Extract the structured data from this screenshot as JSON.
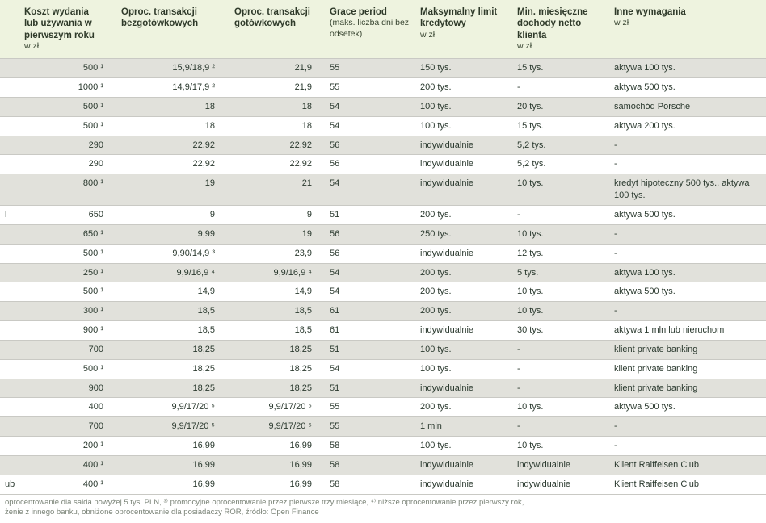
{
  "colors": {
    "header_bg": "#eef3df",
    "stripe_bg": "#e1e1db",
    "plain_bg": "#ffffff",
    "border": "#c9c9c4",
    "text": "#2b3a2f",
    "footnote_text": "#7a8377"
  },
  "columns": [
    {
      "title": "Koszt wydania lub używania w pierwszym roku",
      "sub": "w zł"
    },
    {
      "title": "Oproc. transakcji bezgotówkowych",
      "sub": ""
    },
    {
      "title": "Oproc. transakcji gotówkowych",
      "sub": ""
    },
    {
      "title": "Grace period",
      "sub": "(maks. liczba dni bez odsetek)"
    },
    {
      "title": "Maksymalny limit kredytowy",
      "sub": "w zł"
    },
    {
      "title": "Min. miesięczne dochody netto klienta",
      "sub": "w zł"
    },
    {
      "title": "Inne wymagania",
      "sub": "w zł"
    }
  ],
  "rows": [
    {
      "lead": "",
      "c1": "500 ¹",
      "c2": "15,9/18,9 ²",
      "c3": "21,9",
      "c4": "55",
      "c5": "150 tys.",
      "c6": "15 tys.",
      "c7": "aktywa 100 tys."
    },
    {
      "lead": "",
      "c1": "1000 ¹",
      "c2": "14,9/17,9 ²",
      "c3": "21,9",
      "c4": "55",
      "c5": "200 tys.",
      "c6": "-",
      "c7": "aktywa 500 tys."
    },
    {
      "lead": "",
      "c1": "500 ¹",
      "c2": "18",
      "c3": "18",
      "c4": "54",
      "c5": "100 tys.",
      "c6": "20 tys.",
      "c7": "samochód Porsche"
    },
    {
      "lead": "",
      "c1": "500 ¹",
      "c2": "18",
      "c3": "18",
      "c4": "54",
      "c5": "100 tys.",
      "c6": "15 tys.",
      "c7": "aktywa 200 tys."
    },
    {
      "lead": "",
      "c1": "290",
      "c2": "22,92",
      "c3": "22,92",
      "c4": "56",
      "c5": "indywidualnie",
      "c6": "5,2 tys.",
      "c7": "-"
    },
    {
      "lead": "",
      "c1": "290",
      "c2": "22,92",
      "c3": "22,92",
      "c4": "56",
      "c5": "indywidualnie",
      "c6": "5,2 tys.",
      "c7": "-"
    },
    {
      "lead": "",
      "c1": "800 ¹",
      "c2": "19",
      "c3": "21",
      "c4": "54",
      "c5": "indywidualnie",
      "c6": "10 tys.",
      "c7": "kredyt hipoteczny 500 tys., aktywa 100 tys.",
      "tall": true
    },
    {
      "lead": "l",
      "c1": "650",
      "c2": "9",
      "c3": "9",
      "c4": "51",
      "c5": "200 tys.",
      "c6": "-",
      "c7": "aktywa 500 tys."
    },
    {
      "lead": "",
      "c1": "650 ¹",
      "c2": "9,99",
      "c3": "19",
      "c4": "56",
      "c5": "250 tys.",
      "c6": "10 tys.",
      "c7": "-"
    },
    {
      "lead": "",
      "c1": "500 ¹",
      "c2": "9,90/14,9 ³",
      "c3": "23,9",
      "c4": "56",
      "c5": "indywidualnie",
      "c6": "12 tys.",
      "c7": "-"
    },
    {
      "lead": "",
      "c1": "250 ¹",
      "c2": "9,9/16,9 ⁴",
      "c3": "9,9/16,9 ⁴",
      "c4": "54",
      "c5": "200 tys.",
      "c6": "5 tys.",
      "c7": "aktywa 100 tys."
    },
    {
      "lead": "",
      "c1": "500 ¹",
      "c2": "14,9",
      "c3": "14,9",
      "c4": "54",
      "c5": "200 tys.",
      "c6": "10 tys.",
      "c7": "aktywa 500 tys."
    },
    {
      "lead": "",
      "c1": "300 ¹",
      "c2": "18,5",
      "c3": "18,5",
      "c4": "61",
      "c5": "200 tys.",
      "c6": "10 tys.",
      "c7": "-"
    },
    {
      "lead": "",
      "c1": "900 ¹",
      "c2": "18,5",
      "c3": "18,5",
      "c4": "61",
      "c5": "indywidualnie",
      "c6": "30 tys.",
      "c7": "aktywa 1 mln lub nieruchom"
    },
    {
      "lead": "",
      "c1": "700",
      "c2": "18,25",
      "c3": "18,25",
      "c4": "51",
      "c5": "100 tys.",
      "c6": "-",
      "c7": "klient private banking"
    },
    {
      "lead": "",
      "c1": "500 ¹",
      "c2": "18,25",
      "c3": "18,25",
      "c4": "54",
      "c5": "100 tys.",
      "c6": "-",
      "c7": "klient private banking"
    },
    {
      "lead": "",
      "c1": "900",
      "c2": "18,25",
      "c3": "18,25",
      "c4": "51",
      "c5": "indywidualnie",
      "c6": "-",
      "c7": "klient private banking"
    },
    {
      "lead": "",
      "c1": "400",
      "c2": "9,9/17/20 ⁵",
      "c3": "9,9/17/20 ⁵",
      "c4": "55",
      "c5": "200 tys.",
      "c6": "10 tys.",
      "c7": "aktywa 500 tys."
    },
    {
      "lead": "",
      "c1": "700",
      "c2": "9,9/17/20 ⁵",
      "c3": "9,9/17/20 ⁵",
      "c4": "55",
      "c5": "1 mln",
      "c6": "-",
      "c7": "-"
    },
    {
      "lead": "",
      "c1": "200 ¹",
      "c2": "16,99",
      "c3": "16,99",
      "c4": "58",
      "c5": "100 tys.",
      "c6": "10 tys.",
      "c7": "-"
    },
    {
      "lead": "",
      "c1": "400 ¹",
      "c2": "16,99",
      "c3": "16,99",
      "c4": "58",
      "c5": "indywidualnie",
      "c6": "indywidualnie",
      "c7": "Klient Raiffeisen Club"
    },
    {
      "lead": "ub",
      "c1": "400 ¹",
      "c2": "16,99",
      "c3": "16,99",
      "c4": "58",
      "c5": "indywidualnie",
      "c6": "indywidualnie",
      "c7": "Klient Raiffeisen Club"
    }
  ],
  "footnotes": [
    "oprocentowanie dla salda powyżej 5 tys. PLN, ³⁾ promocyjne oprocentowanie przez pierwsze trzy miesiące, ⁴⁾ niższe oprocentowanie przez pierwszy rok,",
    "żenie z innego banku, obniżone oprocentowanie dla posiadaczy ROR, źródło: Open Finance"
  ]
}
